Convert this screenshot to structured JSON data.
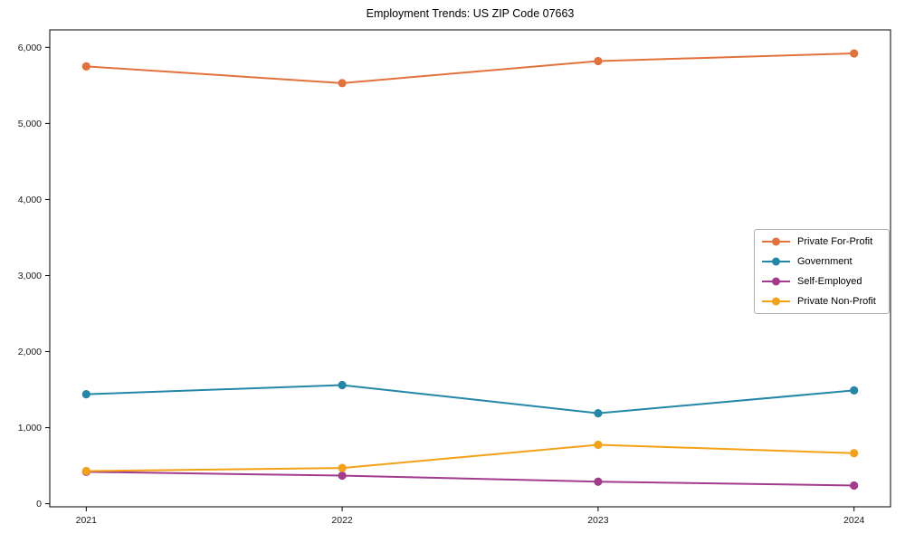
{
  "chart_data": {
    "type": "line",
    "title": "Employment Trends: US ZIP Code 07663",
    "xlabel": "",
    "ylabel": "",
    "x_labels": [
      "2021",
      "2022",
      "2023",
      "2024"
    ],
    "series": [
      {
        "name": "Private For-Profit",
        "color": "#E2713B",
        "values": [
          5750,
          5530,
          5820,
          5920
        ]
      },
      {
        "name": "Government",
        "color": "#2387A8",
        "values": [
          1440,
          1560,
          1190,
          1490
        ]
      },
      {
        "name": "Self-Employed",
        "color": "#A33B8D",
        "values": [
          420,
          370,
          290,
          240
        ]
      },
      {
        "name": "Private Non-Profit",
        "color": "#F3A218",
        "values": [
          430,
          470,
          775,
          665
        ]
      }
    ],
    "yticks": [
      0,
      1000,
      2000,
      3000,
      4000,
      5000,
      6000
    ],
    "ytick_labels": [
      "0",
      "1,000",
      "2,000",
      "3,000",
      "4,000",
      "5,000",
      "6,000"
    ],
    "ylim": [
      -40,
      6230
    ],
    "grid": false,
    "legend_position": "center right",
    "marker": "circle",
    "axis_color": "#000000",
    "text_color": "#1a1a1a",
    "background": "#ffffff"
  }
}
